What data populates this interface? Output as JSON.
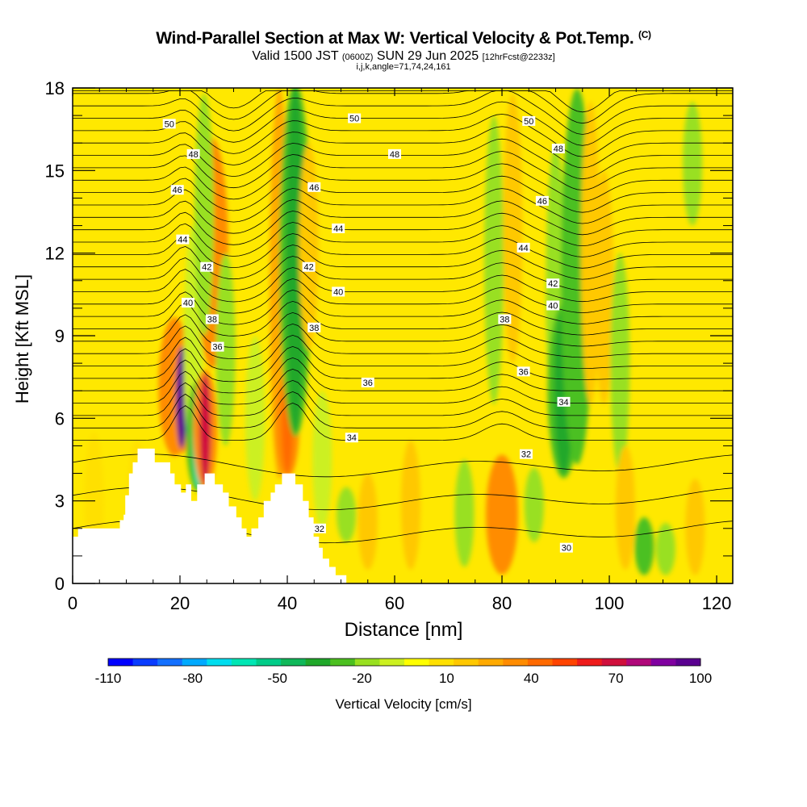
{
  "header": {
    "title": "Wind-Parallel Section at Max W: Vertical Velocity & Pot.Temp.",
    "copyright": "(C)",
    "valid_prefix": "Valid 1500 JST",
    "valid_utc": "(0600Z)",
    "valid_date": "SUN 29 Jun 2025",
    "forecast": "[12hrFcst@2233z]",
    "params": "i,j,k,angle=71,74,24,161"
  },
  "chart_data": {
    "type": "heatmap",
    "title": "Wind-Parallel Section at Max W: Vertical Velocity & Pot.Temp.",
    "xlabel": "Distance [nm]",
    "ylabel": "Height [Kft MSL]",
    "xlim": [
      0,
      123
    ],
    "ylim": [
      0,
      18
    ],
    "x_ticks": [
      "0",
      "20",
      "40",
      "60",
      "80",
      "100",
      "120"
    ],
    "y_ticks": [
      "0",
      "3",
      "6",
      "9",
      "12",
      "15",
      "18"
    ],
    "grid": false,
    "colorbar": {
      "label": "Vertical Velocity [cm/s]",
      "tick_labels": [
        "-110",
        "-80",
        "-50",
        "-20",
        "10",
        "40",
        "70",
        "100"
      ],
      "colors": [
        "#0000ff",
        "#0a3cff",
        "#1470ff",
        "#00aaff",
        "#00ddee",
        "#00e6b4",
        "#00cc88",
        "#10b85a",
        "#20a82a",
        "#4cc020",
        "#99e020",
        "#ccf020",
        "#ffff00",
        "#ffe000",
        "#ffc800",
        "#ffaa00",
        "#ff8c00",
        "#ff6a00",
        "#ff4400",
        "#ee1c1c",
        "#d0103c",
        "#b0087a",
        "#8000a0",
        "#5a0090"
      ]
    },
    "vertical_velocity_columns": [
      {
        "x": 4,
        "base": 0.5,
        "top": 5.5,
        "w": 8
      },
      {
        "x": 12,
        "base": 0.5,
        "top": 5.2,
        "w": 12
      },
      {
        "x": 19,
        "base": 4.8,
        "top": 9.5,
        "w": 32
      },
      {
        "x": 20.3,
        "base": 4.9,
        "top": 8.6,
        "w": 100
      },
      {
        "x": 22.5,
        "base": 4.0,
        "top": 13,
        "w": -8
      },
      {
        "x": 23.4,
        "base": 3.5,
        "top": 7.2,
        "w": -65
      },
      {
        "x": 24.7,
        "base": 3.6,
        "top": 7.6,
        "w": 72
      },
      {
        "x": 26,
        "base": 8,
        "top": 16,
        "w": 30
      },
      {
        "x": 24.5,
        "base": 9,
        "top": 17.8,
        "w": -18
      },
      {
        "x": 28.5,
        "base": 5,
        "top": 12,
        "w": -14
      },
      {
        "x": 34,
        "base": 3,
        "top": 9,
        "w": -12
      },
      {
        "x": 38.5,
        "base": 3.8,
        "top": 18,
        "w": 24
      },
      {
        "x": 40,
        "base": 4.0,
        "top": 7.5,
        "w": 45
      },
      {
        "x": 41.5,
        "base": 5.5,
        "top": 18,
        "w": -35
      },
      {
        "x": 44,
        "base": 8.5,
        "top": 16,
        "w": 20
      },
      {
        "x": 46.5,
        "base": 2.0,
        "top": 7,
        "w": -12
      },
      {
        "x": 51,
        "base": 1.5,
        "top": 3.5,
        "w": -18
      },
      {
        "x": 55,
        "base": 0.5,
        "top": 4,
        "w": 16
      },
      {
        "x": 63,
        "base": 0.5,
        "top": 5.2,
        "w": 16
      },
      {
        "x": 73,
        "base": 0.6,
        "top": 4.5,
        "w": -14
      },
      {
        "x": 80,
        "base": 0.5,
        "top": 4.5,
        "w": 36
      },
      {
        "x": 78.5,
        "base": 6.5,
        "top": 17,
        "w": -18
      },
      {
        "x": 82,
        "base": 8,
        "top": 17.8,
        "w": 20
      },
      {
        "x": 86,
        "base": 1.5,
        "top": 4.2,
        "w": -16
      },
      {
        "x": 90,
        "base": 5.5,
        "top": 16,
        "w": -14
      },
      {
        "x": 91.5,
        "base": 4.0,
        "top": 10,
        "w": -35
      },
      {
        "x": 94,
        "base": 4.5,
        "top": 17.8,
        "w": -26
      },
      {
        "x": 96.5,
        "base": 6.5,
        "top": 17.5,
        "w": 20
      },
      {
        "x": 99,
        "base": 6.5,
        "top": 15,
        "w": 15
      },
      {
        "x": 102,
        "base": 4,
        "top": 12,
        "w": -14
      },
      {
        "x": 103,
        "base": 0.5,
        "top": 5,
        "w": 14
      },
      {
        "x": 106.5,
        "base": 0.3,
        "top": 2.4,
        "w": -24
      },
      {
        "x": 110.5,
        "base": 0.3,
        "top": 2.2,
        "w": -14
      },
      {
        "x": 115.5,
        "base": 13,
        "top": 17.5,
        "w": -14
      },
      {
        "x": 116,
        "base": 0.3,
        "top": 3.8,
        "w": 16
      }
    ],
    "terrain": [
      [
        0,
        1.7
      ],
      [
        1,
        1.7
      ],
      [
        1,
        2.0
      ],
      [
        8.8,
        2.0
      ],
      [
        8.8,
        2.3
      ],
      [
        9.5,
        2.3
      ],
      [
        9.5,
        2.5
      ],
      [
        9.8,
        2.5
      ],
      [
        9.8,
        3.2
      ],
      [
        10.5,
        3.2
      ],
      [
        10.5,
        4.0
      ],
      [
        11.2,
        4.0
      ],
      [
        11.2,
        4.4
      ],
      [
        12.1,
        4.4
      ],
      [
        12.1,
        4.9
      ],
      [
        15.3,
        4.9
      ],
      [
        15.3,
        4.4
      ],
      [
        18.2,
        4.4
      ],
      [
        18.2,
        4.0
      ],
      [
        19.0,
        4.0
      ],
      [
        19.0,
        3.6
      ],
      [
        20.2,
        3.6
      ],
      [
        20.2,
        3.3
      ],
      [
        21.1,
        3.3
      ],
      [
        21.1,
        3.6
      ],
      [
        22.1,
        3.6
      ],
      [
        22.1,
        3.0
      ],
      [
        23.2,
        3.0
      ],
      [
        23.2,
        3.6
      ],
      [
        24.6,
        3.6
      ],
      [
        24.6,
        4.0
      ],
      [
        26.5,
        4.0
      ],
      [
        26.5,
        3.6
      ],
      [
        28.0,
        3.6
      ],
      [
        28.0,
        3.3
      ],
      [
        29.1,
        3.3
      ],
      [
        29.1,
        2.8
      ],
      [
        30.5,
        2.8
      ],
      [
        30.5,
        2.4
      ],
      [
        31.5,
        2.4
      ],
      [
        31.5,
        2.0
      ],
      [
        32.4,
        2.0
      ],
      [
        32.4,
        1.7
      ],
      [
        33.3,
        1.7
      ],
      [
        33.3,
        2.0
      ],
      [
        34.6,
        2.0
      ],
      [
        34.6,
        2.4
      ],
      [
        35.6,
        2.4
      ],
      [
        35.6,
        3.0
      ],
      [
        36.9,
        3.0
      ],
      [
        36.9,
        3.3
      ],
      [
        37.7,
        3.3
      ],
      [
        37.7,
        3.6
      ],
      [
        39.0,
        3.6
      ],
      [
        39.0,
        4.0
      ],
      [
        41.5,
        4.0
      ],
      [
        41.5,
        3.6
      ],
      [
        42.9,
        3.6
      ],
      [
        42.9,
        3.0
      ],
      [
        44.0,
        3.0
      ],
      [
        44.0,
        2.4
      ],
      [
        44.9,
        2.4
      ],
      [
        44.9,
        1.7
      ],
      [
        45.9,
        1.7
      ],
      [
        45.9,
        1.3
      ],
      [
        46.6,
        1.3
      ],
      [
        46.6,
        0.9
      ],
      [
        47.8,
        0.9
      ],
      [
        47.8,
        0.6
      ],
      [
        49.0,
        0.6
      ],
      [
        49.0,
        0.3
      ],
      [
        51.0,
        0.3
      ],
      [
        51.0,
        0
      ]
    ],
    "potential_temperature_contours": {
      "levels_labeled": [
        "30",
        "32",
        "34",
        "36",
        "38",
        "40",
        "42",
        "44",
        "46",
        "48",
        "50"
      ],
      "labels": [
        {
          "text": "50",
          "x": 18,
          "y": 16.7
        },
        {
          "text": "50",
          "x": 52.5,
          "y": 16.9
        },
        {
          "text": "50",
          "x": 85,
          "y": 16.8
        },
        {
          "text": "48",
          "x": 22.5,
          "y": 15.6
        },
        {
          "text": "48",
          "x": 60,
          "y": 15.6
        },
        {
          "text": "48",
          "x": 90.5,
          "y": 15.8
        },
        {
          "text": "46",
          "x": 19.5,
          "y": 14.3
        },
        {
          "text": "46",
          "x": 45,
          "y": 14.4
        },
        {
          "text": "46",
          "x": 87.5,
          "y": 13.9
        },
        {
          "text": "44",
          "x": 20.5,
          "y": 12.5
        },
        {
          "text": "44",
          "x": 49.5,
          "y": 12.9
        },
        {
          "text": "44",
          "x": 84,
          "y": 12.2
        },
        {
          "text": "42",
          "x": 25,
          "y": 11.5
        },
        {
          "text": "42",
          "x": 44,
          "y": 11.5
        },
        {
          "text": "42",
          "x": 89.5,
          "y": 10.9
        },
        {
          "text": "40",
          "x": 21.5,
          "y": 10.2
        },
        {
          "text": "40",
          "x": 49.5,
          "y": 10.6
        },
        {
          "text": "40",
          "x": 89.5,
          "y": 10.1
        },
        {
          "text": "38",
          "x": 26,
          "y": 9.6
        },
        {
          "text": "38",
          "x": 45,
          "y": 9.3
        },
        {
          "text": "38",
          "x": 80.5,
          "y": 9.6
        },
        {
          "text": "36",
          "x": 27,
          "y": 8.6
        },
        {
          "text": "36",
          "x": 55,
          "y": 7.3
        },
        {
          "text": "36",
          "x": 84,
          "y": 7.7
        },
        {
          "text": "34",
          "x": 52,
          "y": 5.3
        },
        {
          "text": "34",
          "x": 91.5,
          "y": 6.6
        },
        {
          "text": "32",
          "x": 46,
          "y": 2.0
        },
        {
          "text": "32",
          "x": 84.5,
          "y": 4.7
        },
        {
          "text": "30",
          "x": 92,
          "y": 1.3
        }
      ]
    }
  }
}
